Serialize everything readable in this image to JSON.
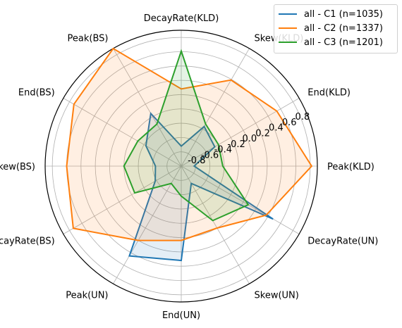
{
  "chart_data": {
    "type": "radar",
    "axes": [
      "Peak(KLD)",
      "End(KLD)",
      "Skew(KLD)",
      "DecayRate(KLD)",
      "Peak(BS)",
      "End(BS)",
      "Skew(BS)",
      "DecayRate(BS)",
      "Peak(UN)",
      "End(UN)",
      "Skew(UN)",
      "DecayRate(UN)"
    ],
    "radial_ticks": [
      -0.8,
      -0.6,
      -0.4,
      -0.2,
      0.0,
      0.2,
      0.4,
      0.6,
      0.8
    ],
    "rlim": [
      -1.0,
      0.9
    ],
    "series": [
      {
        "name": "all - C1 (n=1035)",
        "color": "#1f77b4",
        "values": [
          -0.82,
          -0.46,
          -0.36,
          -0.72,
          -0.15,
          -0.43,
          -0.64,
          -0.58,
          0.45,
          0.32,
          -0.72,
          0.48
        ]
      },
      {
        "name": "all - C2 (n=1337)",
        "color": "#ff7f0e",
        "values": [
          0.82,
          0.54,
          0.39,
          0.08,
          0.9,
          0.73,
          0.6,
          0.74,
          0.2,
          0.04,
          0.0,
          0.37
        ]
      },
      {
        "name": "all - C3 (n=1201)",
        "color": "#2ca02c",
        "values": [
          -0.42,
          -0.4,
          -0.32,
          0.61,
          -0.32,
          -0.3,
          -0.2,
          -0.25,
          -0.72,
          -0.58,
          -0.12,
          0.08
        ]
      }
    ],
    "grid": true,
    "legend_position": "top-right"
  },
  "legend": {
    "c1": "all - C1 (n=1035)",
    "c2": "all - C2 (n=1337)",
    "c3": "all - C3 (n=1201)"
  }
}
